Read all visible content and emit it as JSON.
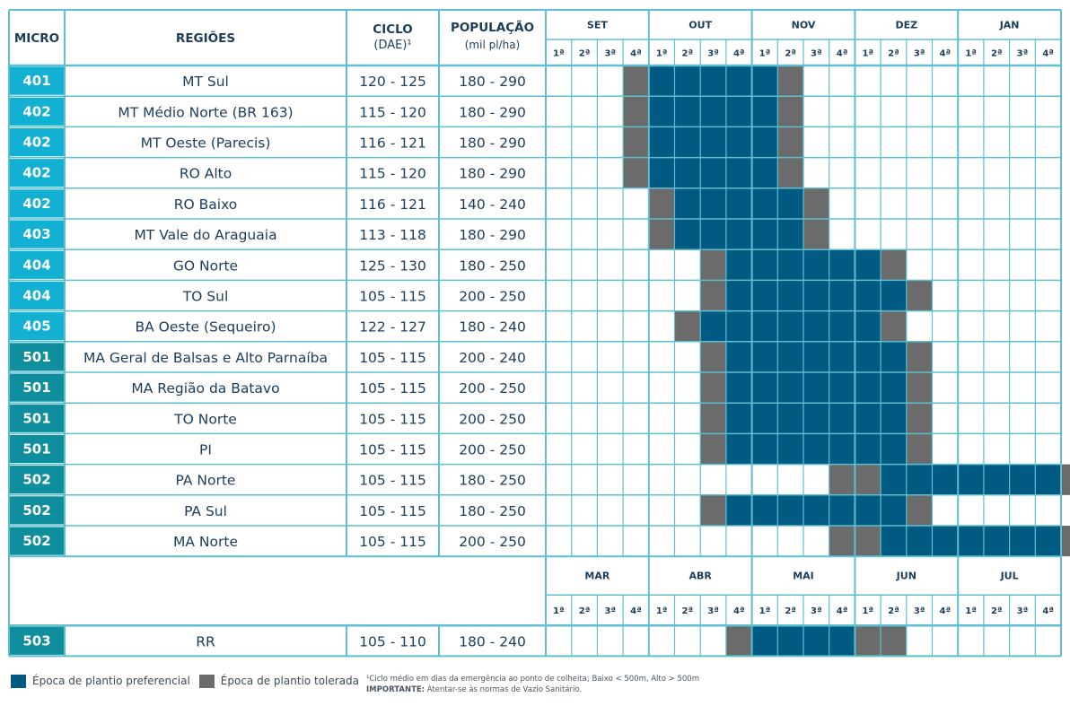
{
  "chart_data": {
    "type": "table",
    "title": "",
    "colors": {
      "preferential": "#005a82",
      "tolerated": "#6b6b6b",
      "border": "#5fbfd0",
      "text": "#1c3d5a",
      "micro_light": "#12b1d3",
      "micro_dark": "#0f8e9e"
    },
    "headers": {
      "micro": "MICRO",
      "regions": "REGIÕES",
      "cycle": "CICLO",
      "cycle_sub": "(DAE)¹",
      "population": "POPULAÇÃO",
      "population_sub": "(mil pl/ha)"
    },
    "months_top": [
      "SET",
      "OUT",
      "NOV",
      "DEZ",
      "JAN"
    ],
    "months_bottom": [
      "MAR",
      "ABR",
      "MAI",
      "JUN",
      "JUL"
    ],
    "weeks": [
      "1ª",
      "2ª",
      "3ª",
      "4ª"
    ],
    "rows": [
      {
        "micro": "401",
        "region": "MT Sul",
        "cycle": "120 - 125",
        "population": "180 - 290",
        "tolerated": [
          3,
          9
        ],
        "preferred": [
          4,
          5,
          6,
          7,
          8
        ]
      },
      {
        "micro": "402",
        "region": "MT Médio Norte (BR 163)",
        "cycle": "115 - 120",
        "population": "180 - 290",
        "tolerated": [
          3,
          9
        ],
        "preferred": [
          4,
          5,
          6,
          7,
          8
        ]
      },
      {
        "micro": "402",
        "region": "MT Oeste (Parecis)",
        "cycle": "116 - 121",
        "population": "180 - 290",
        "tolerated": [
          3,
          9
        ],
        "preferred": [
          4,
          5,
          6,
          7,
          8
        ]
      },
      {
        "micro": "402",
        "region": "RO Alto",
        "cycle": "115 - 120",
        "population": "180 - 290",
        "tolerated": [
          3,
          9
        ],
        "preferred": [
          4,
          5,
          6,
          7,
          8
        ]
      },
      {
        "micro": "402",
        "region": "RO Baixo",
        "cycle": "116 - 121",
        "population": "140 - 240",
        "tolerated": [
          4,
          10
        ],
        "preferred": [
          5,
          6,
          7,
          8,
          9
        ]
      },
      {
        "micro": "403",
        "region": "MT Vale do Araguaia",
        "cycle": "113 - 118",
        "population": "180 - 290",
        "tolerated": [
          4,
          10
        ],
        "preferred": [
          5,
          6,
          7,
          8,
          9
        ]
      },
      {
        "micro": "404",
        "region": "GO Norte",
        "cycle": "125 - 130",
        "population": "180 - 250",
        "tolerated": [
          6,
          13
        ],
        "preferred": [
          7,
          8,
          9,
          10,
          11,
          12
        ]
      },
      {
        "micro": "404",
        "region": "TO Sul",
        "cycle": "105 - 115",
        "population": "200 - 250",
        "tolerated": [
          6,
          14
        ],
        "preferred": [
          7,
          8,
          9,
          10,
          11,
          12,
          13
        ]
      },
      {
        "micro": "405",
        "region": "BA Oeste (Sequeiro)",
        "cycle": "122 - 127",
        "population": "180 - 240",
        "tolerated": [
          5,
          13
        ],
        "preferred": [
          6,
          7,
          8,
          9,
          10,
          11,
          12
        ]
      },
      {
        "micro": "501",
        "region": "MA Geral de Balsas e Alto Parnaíba",
        "cycle": "105 - 115",
        "population": "200 - 240",
        "tolerated": [
          6,
          14
        ],
        "preferred": [
          7,
          8,
          9,
          10,
          11,
          12,
          13
        ]
      },
      {
        "micro": "501",
        "region": "MA Região da Batavo",
        "cycle": "105 - 115",
        "population": "200 - 250",
        "tolerated": [
          6,
          14
        ],
        "preferred": [
          7,
          8,
          9,
          10,
          11,
          12,
          13
        ]
      },
      {
        "micro": "501",
        "region": "TO Norte",
        "cycle": "105 - 115",
        "population": "200 - 250",
        "tolerated": [
          6,
          14
        ],
        "preferred": [
          7,
          8,
          9,
          10,
          11,
          12,
          13
        ]
      },
      {
        "micro": "501",
        "region": "PI",
        "cycle": "105 - 115",
        "population": "200 - 250",
        "tolerated": [
          6,
          14
        ],
        "preferred": [
          7,
          8,
          9,
          10,
          11,
          12,
          13
        ]
      },
      {
        "micro": "502",
        "region": "PA Norte",
        "cycle": "105 - 115",
        "population": "180 - 250",
        "tolerated": [
          11,
          12,
          20
        ],
        "preferred": [
          13,
          14,
          15,
          16,
          17,
          18,
          19
        ]
      },
      {
        "micro": "502",
        "region": "PA Sul",
        "cycle": "105 - 115",
        "population": "180 - 250",
        "tolerated": [
          6,
          14
        ],
        "preferred": [
          7,
          8,
          9,
          10,
          11,
          12,
          13
        ]
      },
      {
        "micro": "502",
        "region": "MA Norte",
        "cycle": "105 - 115",
        "population": "200 - 250",
        "tolerated": [
          11,
          12,
          20
        ],
        "preferred": [
          13,
          14,
          15,
          16,
          17,
          18,
          19
        ]
      }
    ],
    "rows_bottom": [
      {
        "micro": "503",
        "region": "RR",
        "cycle": "105 - 110",
        "population": "180 - 240",
        "tolerated": [
          7,
          12,
          13
        ],
        "preferred": [
          8,
          9,
          10,
          11
        ]
      }
    ],
    "legend": [
      {
        "label": "Época de plantio preferencial",
        "color": "#005a82"
      },
      {
        "label": "Época de plantio tolerada",
        "color": "#6b6b6b"
      }
    ],
    "footnote": "¹Ciclo médio em dias da emergência ao ponto de colheita; Baixo < 500m, Alto > 500m",
    "important_label": "IMPORTANTE:",
    "important_text": "Atentar-se às normas de Vazio Sanitário."
  }
}
